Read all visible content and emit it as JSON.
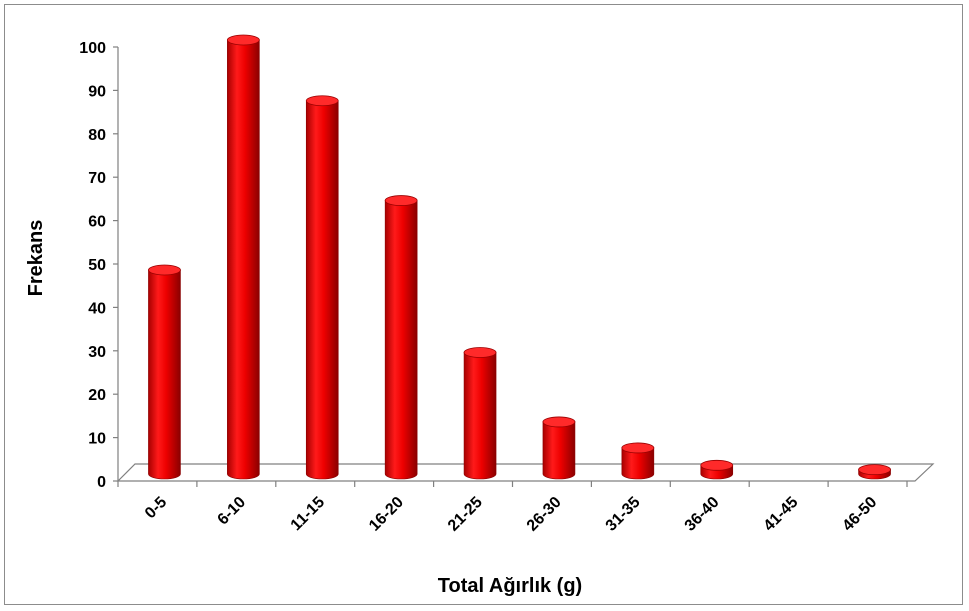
{
  "chart_data": {
    "type": "bar",
    "categories": [
      "0-5",
      "6-10",
      "11-15",
      "16-20",
      "21-25",
      "26-30",
      "31-35",
      "36-40",
      "41-45",
      "46-50"
    ],
    "values": [
      47,
      100,
      86,
      63,
      28,
      12,
      6,
      2,
      0,
      1
    ],
    "xlabel": "Total Ağırlık (g)",
    "ylabel": "Frekans",
    "ylim": [
      0,
      100
    ],
    "yticks": [
      0,
      10,
      20,
      30,
      40,
      50,
      60,
      70,
      80,
      90,
      100
    ],
    "bar_color": "#e00000",
    "style": "3d-cylinder",
    "grid": false,
    "legend": "none"
  }
}
